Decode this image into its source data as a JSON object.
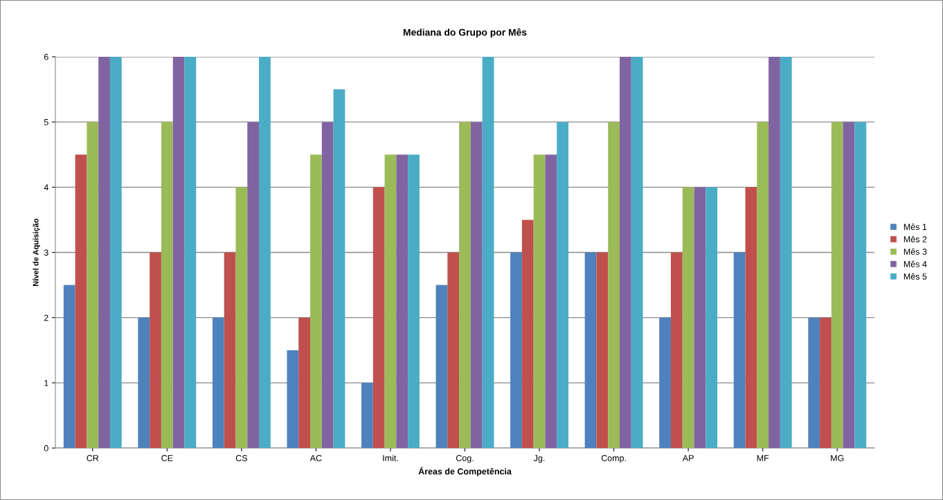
{
  "chart_data": {
    "type": "bar",
    "title": "Mediana do Grupo por Mês",
    "xlabel": "Áreas de Competência",
    "ylabel": "Nível de Aquisição",
    "categories": [
      "CR",
      "CE",
      "CS",
      "AC",
      "Imit.",
      "Cog.",
      "Jg.",
      "Comp.",
      "AP",
      "MF",
      "MG"
    ],
    "series": [
      {
        "name": "Mês 1",
        "color": "#4f81bd",
        "values": [
          2.5,
          2,
          2,
          1.5,
          1,
          2.5,
          3,
          3,
          2,
          3,
          2
        ]
      },
      {
        "name": "Mês 2",
        "color": "#c0504d",
        "values": [
          4.5,
          3,
          3,
          2,
          4,
          3,
          3.5,
          3,
          3,
          4,
          2
        ]
      },
      {
        "name": "Mês 3",
        "color": "#9bbb59",
        "values": [
          5,
          5,
          4,
          4.5,
          4.5,
          5,
          4.5,
          5,
          4,
          5,
          5
        ]
      },
      {
        "name": "Mês 4",
        "color": "#8064a2",
        "values": [
          6,
          6,
          5,
          5,
          4.5,
          5,
          4.5,
          6,
          4,
          6,
          5
        ]
      },
      {
        "name": "Mês 5",
        "color": "#4bacc6",
        "values": [
          6,
          6,
          6,
          5.5,
          4.5,
          6,
          5,
          6,
          4,
          6,
          5
        ]
      }
    ],
    "ylim": [
      0,
      6
    ],
    "yticks": [
      0,
      1,
      2,
      3,
      4,
      5,
      6
    ],
    "grid": "y",
    "legend": "right"
  }
}
